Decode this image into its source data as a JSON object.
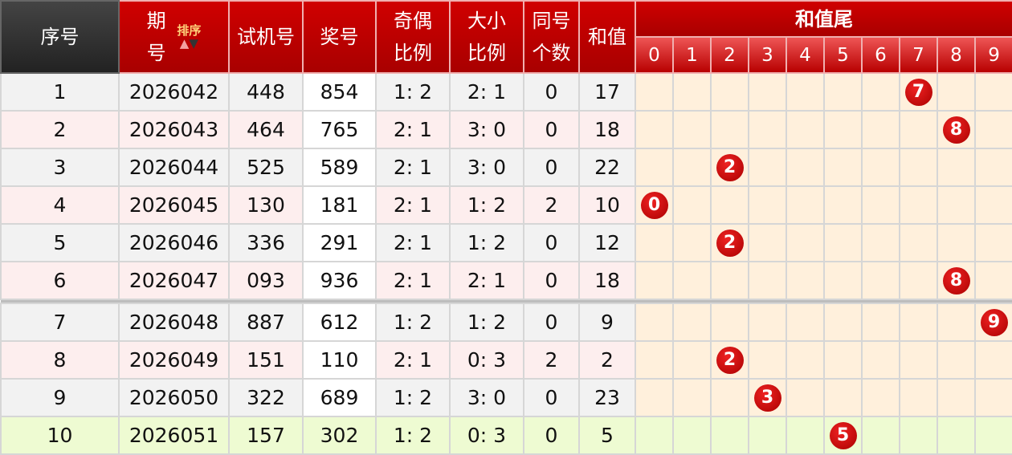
{
  "header": {
    "seq": "序号",
    "period_top": "期",
    "period_bottom": "号",
    "sort_label": "排序",
    "sort_up": "▲",
    "sort_down": "▼",
    "trial": "试机号",
    "draw": "奖号",
    "odd_even_top": "奇偶",
    "odd_even_bottom": "比例",
    "big_small_top": "大小",
    "big_small_bottom": "比例",
    "same_top": "同号",
    "same_bottom": "个数",
    "sum": "和值",
    "sum_tail": "和值尾",
    "digits": [
      "0",
      "1",
      "2",
      "3",
      "4",
      "5",
      "6",
      "7",
      "8",
      "9"
    ]
  },
  "colors": {
    "header_red": "#c00000",
    "ball_red": "#cc0000",
    "cell_cream": "#fff0dc",
    "highlight_green": "#eefbd2"
  },
  "rows": [
    {
      "seq": "1",
      "period": "2026042",
      "trial": "448",
      "draw": "854",
      "odd_even": "1: 2",
      "big_small": "2: 1",
      "same": "0",
      "sum": "17",
      "tail": "7"
    },
    {
      "seq": "2",
      "period": "2026043",
      "trial": "464",
      "draw": "765",
      "odd_even": "2: 1",
      "big_small": "3: 0",
      "same": "0",
      "sum": "18",
      "tail": "8"
    },
    {
      "seq": "3",
      "period": "2026044",
      "trial": "525",
      "draw": "589",
      "odd_even": "2: 1",
      "big_small": "3: 0",
      "same": "0",
      "sum": "22",
      "tail": "2"
    },
    {
      "seq": "4",
      "period": "2026045",
      "trial": "130",
      "draw": "181",
      "odd_even": "2: 1",
      "big_small": "1: 2",
      "same": "2",
      "sum": "10",
      "tail": "0"
    },
    {
      "seq": "5",
      "period": "2026046",
      "trial": "336",
      "draw": "291",
      "odd_even": "2: 1",
      "big_small": "1: 2",
      "same": "0",
      "sum": "12",
      "tail": "2"
    },
    {
      "seq": "6",
      "period": "2026047",
      "trial": "093",
      "draw": "936",
      "odd_even": "2: 1",
      "big_small": "2: 1",
      "same": "0",
      "sum": "18",
      "tail": "8"
    },
    {
      "seq": "7",
      "period": "2026048",
      "trial": "887",
      "draw": "612",
      "odd_even": "1: 2",
      "big_small": "1: 2",
      "same": "0",
      "sum": "9",
      "tail": "9"
    },
    {
      "seq": "8",
      "period": "2026049",
      "trial": "151",
      "draw": "110",
      "odd_even": "2: 1",
      "big_small": "0: 3",
      "same": "2",
      "sum": "2",
      "tail": "2"
    },
    {
      "seq": "9",
      "period": "2026050",
      "trial": "322",
      "draw": "689",
      "odd_even": "1: 2",
      "big_small": "3: 0",
      "same": "0",
      "sum": "23",
      "tail": "3"
    },
    {
      "seq": "10",
      "period": "2026051",
      "trial": "157",
      "draw": "302",
      "odd_even": "1: 2",
      "big_small": "0: 3",
      "same": "0",
      "sum": "5",
      "tail": "5"
    }
  ]
}
